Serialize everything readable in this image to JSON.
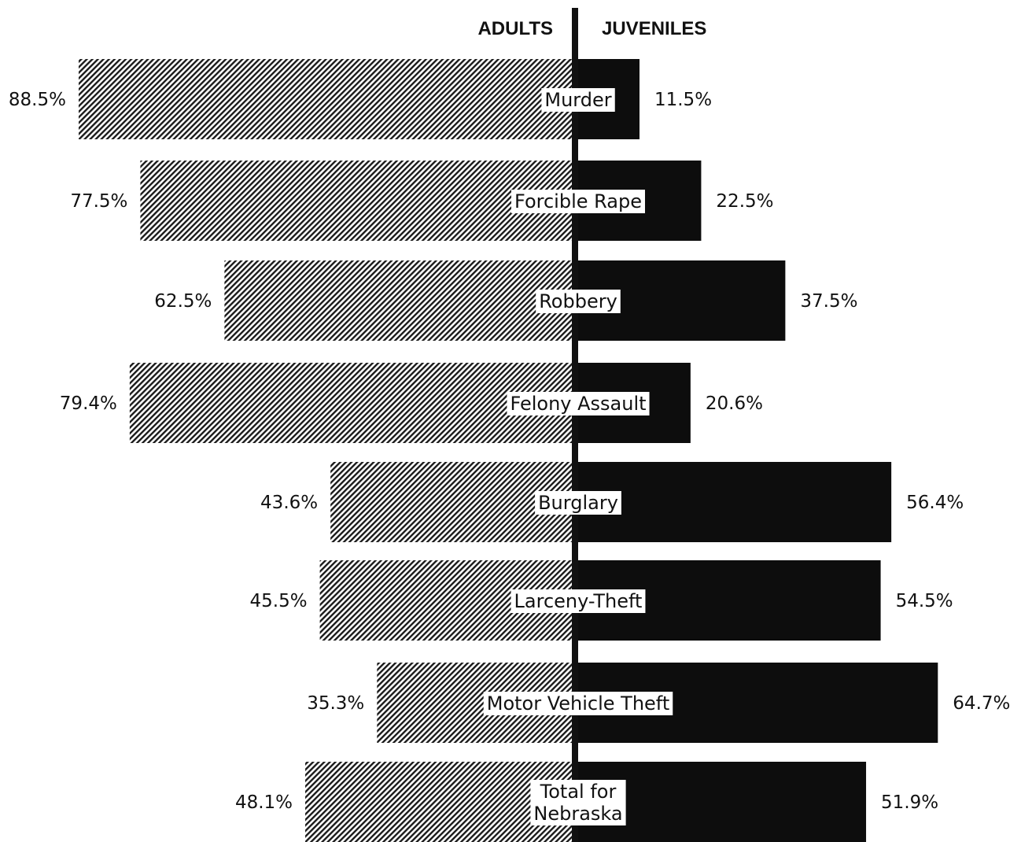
{
  "chart_data": {
    "type": "bar",
    "orientation": "horizontal-diverging",
    "categories": [
      "Murder",
      "Forcible Rape",
      "Robbery",
      "Felony Assault",
      "Burglary",
      "Larceny-Theft",
      "Motor Vehicle Theft",
      "Total for Nebraska"
    ],
    "category_lines": [
      [
        "Murder"
      ],
      [
        "Forcible Rape"
      ],
      [
        "Robbery"
      ],
      [
        "Felony Assault"
      ],
      [
        "Burglary"
      ],
      [
        "Larceny-Theft"
      ],
      [
        "Motor Vehicle Theft"
      ],
      [
        "Total for",
        "Nebraska"
      ]
    ],
    "series": [
      {
        "name": "ADULTS",
        "side": "left",
        "pattern": "hatched",
        "values": [
          88.5,
          77.5,
          62.5,
          79.4,
          43.6,
          45.5,
          35.3,
          48.1
        ],
        "labels": [
          "88.5%",
          "77.5%",
          "62.5%",
          "79.4%",
          "43.6%",
          "45.5%",
          "35.3%",
          "48.1%"
        ]
      },
      {
        "name": "JUVENILES",
        "side": "right",
        "pattern": "solid",
        "values": [
          11.5,
          22.5,
          37.5,
          20.6,
          56.4,
          54.5,
          64.7,
          51.9
        ],
        "labels": [
          "11.5%",
          "22.5%",
          "37.5%",
          "20.6%",
          "56.4%",
          "54.5%",
          "64.7%",
          "51.9%"
        ]
      }
    ],
    "title": "",
    "xlabel": "",
    "ylabel": "",
    "unit": "%",
    "xlim": [
      0,
      100
    ],
    "grid": false,
    "legend": "top-center",
    "colors": {
      "adults_hatch": "#1a1a1a",
      "juveniles_fill": "#0d0d0d",
      "axis": "#111111",
      "background": "#ffffff"
    }
  }
}
